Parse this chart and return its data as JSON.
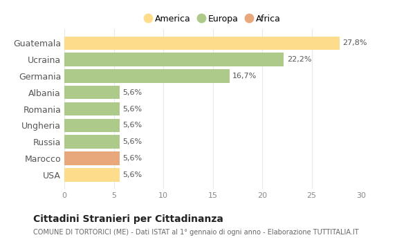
{
  "categories": [
    "Guatemala",
    "Ucraina",
    "Germania",
    "Albania",
    "Romania",
    "Ungheria",
    "Russia",
    "Marocco",
    "USA"
  ],
  "values": [
    27.8,
    22.2,
    16.7,
    5.6,
    5.6,
    5.6,
    5.6,
    5.6,
    5.6
  ],
  "labels": [
    "27,8%",
    "22,2%",
    "16,7%",
    "5,6%",
    "5,6%",
    "5,6%",
    "5,6%",
    "5,6%",
    "5,6%"
  ],
  "colors": [
    "#FDDD8C",
    "#AECA8A",
    "#AECA8A",
    "#AECA8A",
    "#AECA8A",
    "#AECA8A",
    "#AECA8A",
    "#E8A87C",
    "#FDDD8C"
  ],
  "legend": [
    {
      "label": "America",
      "color": "#FDDD8C"
    },
    {
      "label": "Europa",
      "color": "#AECA8A"
    },
    {
      "label": "Africa",
      "color": "#E8A87C"
    }
  ],
  "xlim": [
    0,
    30
  ],
  "xticks": [
    0,
    5,
    10,
    15,
    20,
    25,
    30
  ],
  "title": "Cittadini Stranieri per Cittadinanza",
  "subtitle": "COMUNE DI TORTORICI (ME) - Dati ISTAT al 1° gennaio di ogni anno - Elaborazione TUTTITALIA.IT",
  "background_color": "#FFFFFF",
  "grid_color": "#E8E8E8",
  "bar_height": 0.82
}
